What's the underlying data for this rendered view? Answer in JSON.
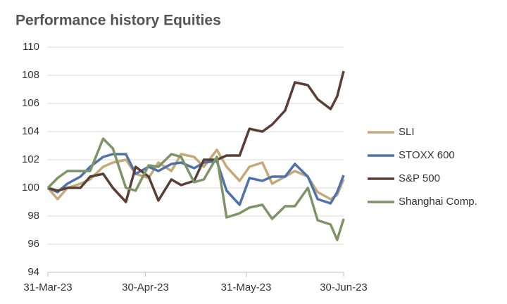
{
  "chart_data": {
    "type": "line",
    "title": "Performance history Equities",
    "x": [
      "31-Mar-23",
      "3-Apr-23",
      "6-Apr-23",
      "10-Apr-23",
      "13-Apr-23",
      "17-Apr-23",
      "20-Apr-23",
      "24-Apr-23",
      "27-Apr-23",
      "1-May-23",
      "4-May-23",
      "8-May-23",
      "11-May-23",
      "15-May-23",
      "18-May-23",
      "22-May-23",
      "25-May-23",
      "29-May-23",
      "1-Jun-23",
      "5-Jun-23",
      "8-Jun-23",
      "12-Jun-23",
      "15-Jun-23",
      "19-Jun-23",
      "22-Jun-23",
      "26-Jun-23",
      "28-Jun-23",
      "30-Jun-23"
    ],
    "series": [
      {
        "name": "SLI",
        "color": "#c5a97a",
        "values": [
          100,
          99.2,
          100,
          100.3,
          100.6,
          101.5,
          101.8,
          102,
          101,
          100.7,
          101.8,
          101.2,
          102.4,
          102.2,
          101.5,
          102.7,
          101.5,
          100.5,
          101.5,
          101.8,
          100.3,
          100.8,
          101.2,
          100.8,
          99.7,
          99.2,
          99.5,
          100.6
        ]
      },
      {
        "name": "STOXX 600",
        "color": "#4f72ad",
        "values": [
          100,
          99.7,
          100.3,
          100.8,
          101.5,
          102.2,
          102.4,
          102.4,
          101,
          101.5,
          101.2,
          101.7,
          101.8,
          101.4,
          101.8,
          101.9,
          99.8,
          98.8,
          100.7,
          100.5,
          100.8,
          100.8,
          101.7,
          100.8,
          99.2,
          98.9,
          99.7,
          100.9
        ]
      },
      {
        "name": "S&P 500",
        "color": "#5a3e33",
        "values": [
          100,
          99.8,
          100,
          100,
          100.8,
          101,
          100,
          99,
          101.5,
          100.8,
          99.1,
          100.6,
          100.2,
          100.5,
          102,
          102,
          102.3,
          102.3,
          104.2,
          104,
          104.5,
          105.5,
          107.5,
          107.3,
          106.3,
          105.6,
          106.5,
          108.3
        ]
      },
      {
        "name": "Shanghai Comp.",
        "color": "#7d9467",
        "values": [
          100,
          100.7,
          101.2,
          101.2,
          101.2,
          103.5,
          102.8,
          100,
          99.8,
          101.6,
          101.5,
          102.4,
          102.2,
          100.4,
          100.6,
          102.2,
          97.9,
          98.2,
          98.6,
          98.8,
          97.8,
          98.7,
          98.7,
          100,
          97.7,
          97.4,
          96.3,
          97.8
        ]
      }
    ],
    "xlim": [
      "31-Mar-23",
      "30-Jun-23"
    ],
    "xticks": [
      "31-Mar-23",
      "30-Apr-23",
      "31-May-23",
      "30-Jun-23"
    ],
    "ylim": [
      94,
      110
    ],
    "yticks": [
      94,
      96,
      98,
      100,
      102,
      104,
      106,
      108,
      110
    ],
    "grid": true
  }
}
